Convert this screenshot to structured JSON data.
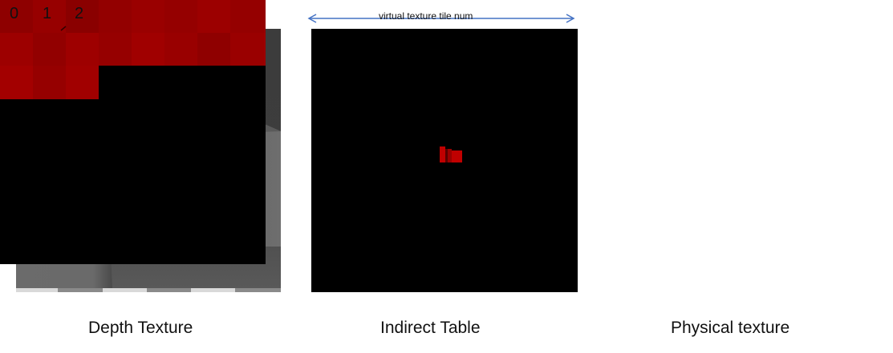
{
  "captions": {
    "depth": "Depth Texture",
    "indirect": "Indirect Table",
    "physical": "Physical texture"
  },
  "arrow": {
    "label": "virtual texture tile num"
  },
  "physical_tile_numbers": [
    "0",
    "1",
    "2"
  ],
  "colors": {
    "background": "#ffffff",
    "depth_light": "#7a7a7a",
    "depth_dark": "#3a3a3a",
    "tile_red": "#a00000",
    "arrow_blue": "#4472c4"
  }
}
